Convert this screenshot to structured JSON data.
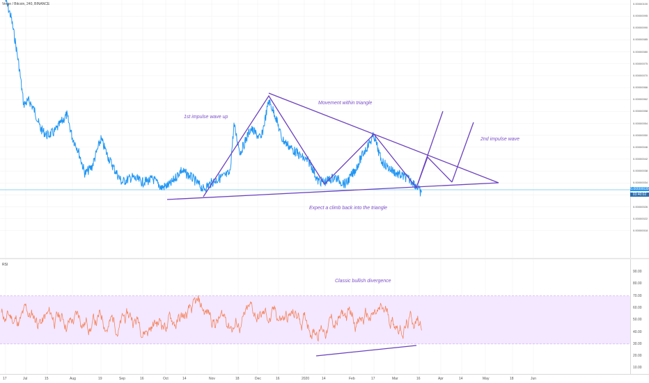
{
  "symbol": "Verge / Bitcoin, 240, BINANCE",
  "rsi_label": "RSI",
  "price_axis_ticks": [
    "0.00000100",
    "0.00000095",
    "0.00000090",
    "0.00000085",
    "0.00000080",
    "0.00000075",
    "0.00000070",
    "0.00000066",
    "0.00000062",
    "0.00000058",
    "0.00000054",
    "0.00000050",
    "0.00000046",
    "0.00000042",
    "0.00000038",
    "0.00000034",
    "0.00000030",
    "0.00000026",
    "0.00000022",
    "0.00000018"
  ],
  "current_price": "0.00000039",
  "countdown": "03:40:02",
  "rsi_axis_ticks": [
    "90.00",
    "80.00",
    "70.00",
    "60.00",
    "50.00",
    "40.00",
    "30.00",
    "20.00",
    "10.00"
  ],
  "time_axis_ticks": [
    "17",
    "Jul",
    "15",
    "Aug",
    "19",
    "Sep",
    "16",
    "Oct",
    "14",
    "Nov",
    "18",
    "Dec",
    "16",
    "2020",
    "14",
    "Feb",
    "17",
    "Mar",
    "16",
    "Apr",
    "14",
    "May",
    "18",
    "Jun"
  ],
  "annotations": {
    "impulse1": "1st impulse wave up",
    "triangle": "Movement within triangle",
    "impulse2": "2nd impulse wave",
    "climb": "Expect a climb back into the triangle",
    "divergence": "Classic bullish divergence"
  },
  "colors": {
    "price_line": "#2196f3",
    "rsi_line": "#f4845f",
    "drawing": "#6a3fbf",
    "rsi_band": "#f3e8ff",
    "current_price_line": "#6ec6e8"
  }
}
